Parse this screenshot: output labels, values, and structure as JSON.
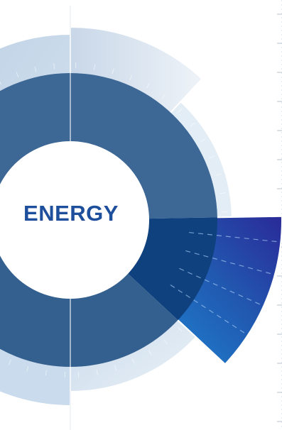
{
  "center_label": "ENERGY",
  "colors": {
    "label": "#1e4f9c",
    "inner_ring": "#3f6a98",
    "inner_ring_dark": "#2c5787",
    "highlight_inner": "#0f3f7e",
    "highlight_outer_from": "#1d7fce",
    "highlight_outer_to": "#2b2a9a",
    "outer_light": "#dfeaf3",
    "outer_mid": "#b9cde2",
    "outer_pale": "#eef4f8"
  },
  "icons": {
    "guide_line": "vertical-guide-line",
    "tick_column": "dotted-tick-column"
  }
}
